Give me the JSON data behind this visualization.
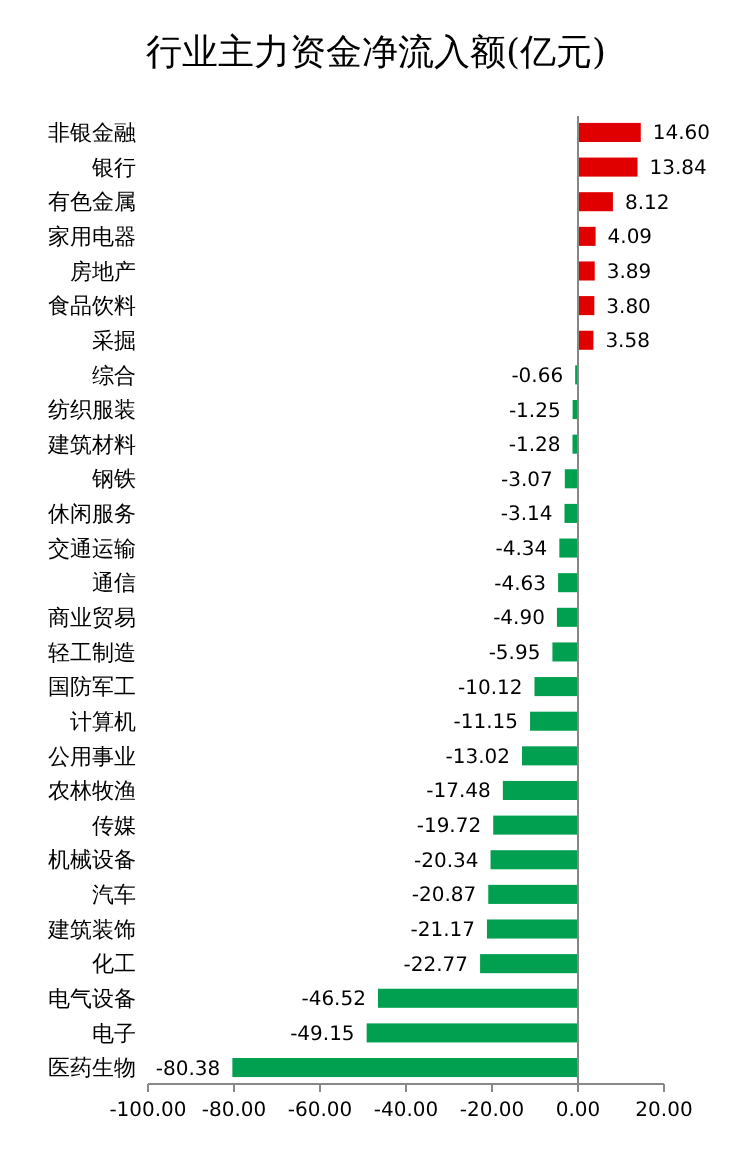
{
  "chart_data": {
    "type": "bar",
    "orientation": "horizontal",
    "title": "行业主力资金净流入额(亿元)",
    "categories": [
      "非银金融",
      "银行",
      "有色金属",
      "家用电器",
      "房地产",
      "食品饮料",
      "采掘",
      "综合",
      "纺织服装",
      "建筑材料",
      "钢铁",
      "休闲服务",
      "交通运输",
      "通信",
      "商业贸易",
      "轻工制造",
      "国防军工",
      "计算机",
      "公用事业",
      "农林牧渔",
      "传媒",
      "机械设备",
      "汽车",
      "建筑装饰",
      "化工",
      "电气设备",
      "电子",
      "医药生物"
    ],
    "values": [
      14.6,
      13.84,
      8.12,
      4.09,
      3.89,
      3.8,
      3.58,
      -0.66,
      -1.25,
      -1.28,
      -3.07,
      -3.14,
      -4.34,
      -4.63,
      -4.9,
      -5.95,
      -10.12,
      -11.15,
      -13.02,
      -17.48,
      -19.72,
      -20.34,
      -20.87,
      -21.17,
      -22.77,
      -46.52,
      -49.15,
      -80.38
    ],
    "colors": [
      "#e00000",
      "#e00000",
      "#e00000",
      "#e00000",
      "#e00000",
      "#e00000",
      "#e00000",
      "#00a050",
      "#00a050",
      "#00a050",
      "#00a050",
      "#00a050",
      "#00a050",
      "#00a050",
      "#00a050",
      "#00a050",
      "#00a050",
      "#00a050",
      "#00a050",
      "#00a050",
      "#00a050",
      "#00a050",
      "#00a050",
      "#00a050",
      "#00a050",
      "#00a050",
      "#00a050",
      "#00a050"
    ],
    "value_labels": [
      "14.60",
      "13.84",
      "8.12",
      "4.09",
      "3.89",
      "3.80",
      "3.58",
      "-0.66",
      "-1.25",
      "-1.28",
      "-3.07",
      "-3.14",
      "-4.34",
      "-4.63",
      "-4.90",
      "-5.95",
      "-10.12",
      "-11.15",
      "-13.02",
      "-17.48",
      "-19.72",
      "-20.34",
      "-20.87",
      "-21.17",
      "-22.77",
      "-46.52",
      "-49.15",
      "-80.38"
    ],
    "xlim": [
      -100,
      20
    ],
    "xticks": [
      {
        "value": -100,
        "label": "-100.00"
      },
      {
        "value": -80,
        "label": "-80.00"
      },
      {
        "value": -60,
        "label": "-60.00"
      },
      {
        "value": -40,
        "label": "-40.00"
      },
      {
        "value": -20,
        "label": "-20.00"
      },
      {
        "value": 0,
        "label": "0.00"
      },
      {
        "value": 20,
        "label": "20.00"
      }
    ]
  }
}
